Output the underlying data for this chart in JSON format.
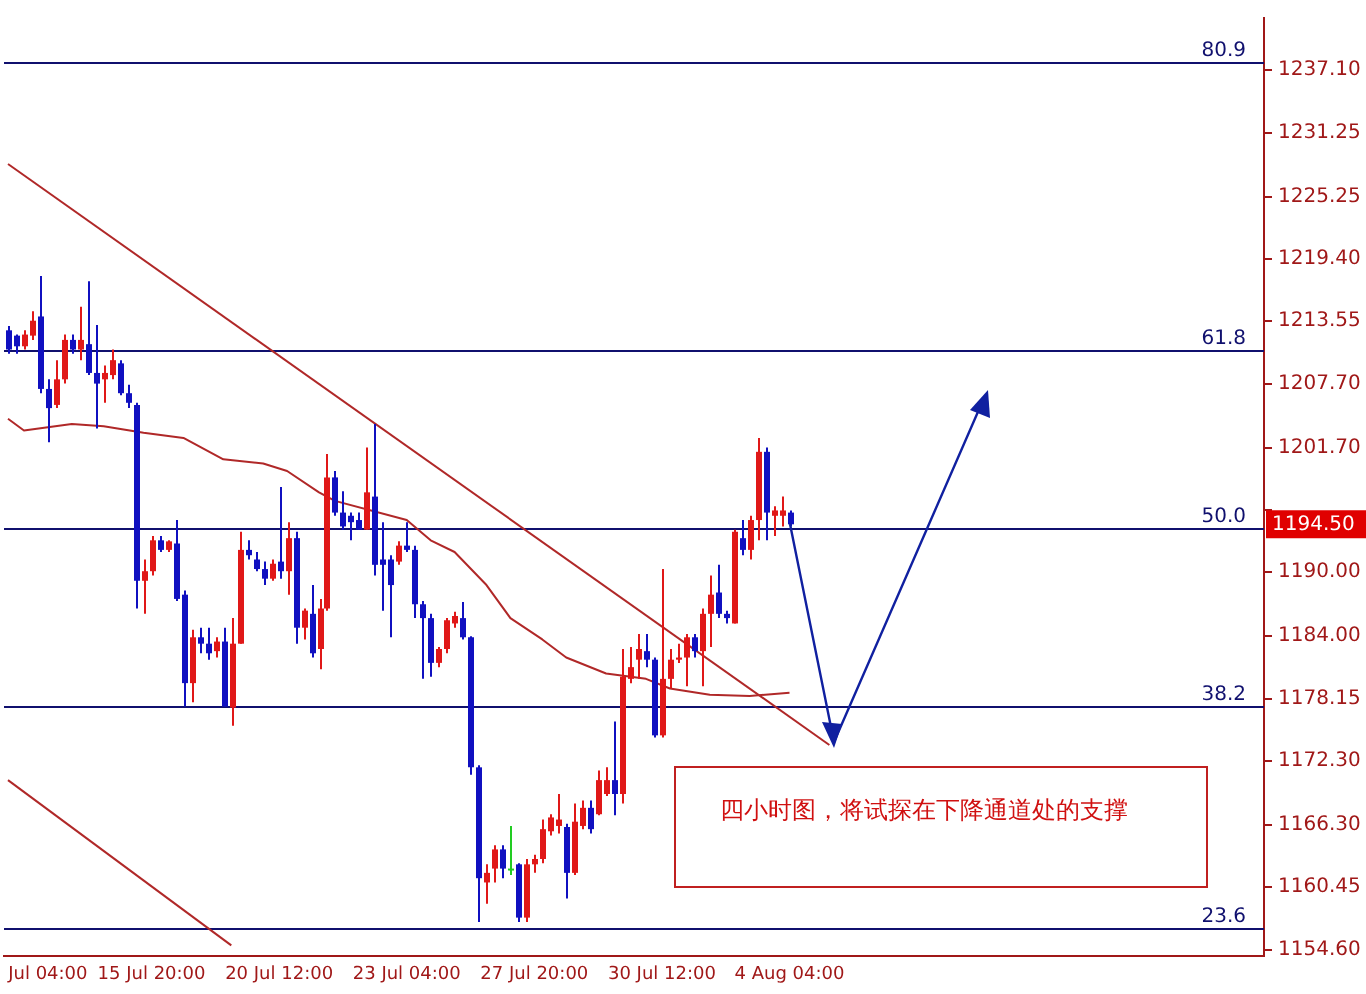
{
  "chart_data": {
    "type": "candlestick",
    "categories": [
      null,
      null,
      null,
      null,
      null,
      "Jul 04:00",
      null,
      null,
      null,
      null,
      null,
      null,
      null,
      null,
      null,
      null,
      null,
      null,
      "15 Jul 20:00",
      null,
      null,
      null,
      null,
      null,
      null,
      null,
      null,
      null,
      null,
      null,
      null,
      null,
      null,
      null,
      "20 Jul 12:00",
      null,
      null,
      null,
      null,
      null,
      null,
      null,
      null,
      null,
      null,
      null,
      null,
      null,
      null,
      null,
      "23 Jul 04:00",
      null,
      null,
      null,
      null,
      null,
      null,
      null,
      null,
      null,
      null,
      null,
      null,
      null,
      null,
      null,
      "27 Jul 20:00",
      null,
      null,
      null,
      null,
      null,
      null,
      null,
      null,
      null,
      null,
      null,
      null,
      null,
      null,
      null,
      "30 Jul 12:00",
      null,
      null,
      null,
      null,
      null,
      null,
      null,
      null,
      null,
      null,
      null,
      null,
      null,
      null,
      null,
      "4 Aug 04:00",
      null,
      null,
      null,
      null,
      null,
      null,
      null,
      null,
      null,
      null,
      null,
      null,
      null,
      null,
      null,
      null,
      null,
      null,
      null,
      null,
      null,
      null,
      null,
      null,
      null,
      null,
      null,
      null,
      null,
      null,
      null,
      null,
      null,
      null,
      null,
      null,
      null,
      null,
      null,
      null,
      null,
      null,
      null,
      null,
      null,
      null,
      null,
      null,
      null,
      null,
      null,
      null,
      null,
      null,
      null,
      null,
      null,
      null,
      null
    ],
    "ohlc": [
      [
        1212.7,
        1213.1,
        1210.5,
        1210.9
      ],
      [
        1212.2,
        1212.3,
        1210.5,
        1211.2
      ],
      [
        1211.2,
        1212.7,
        1210.9,
        1212.3
      ],
      [
        1212.2,
        1214.5,
        1211.8,
        1213.6
      ],
      [
        1214.0,
        1217.8,
        1206.8,
        1207.2
      ],
      [
        1207.2,
        1208.1,
        1202.2,
        1205.4
      ],
      [
        1205.7,
        1209.9,
        1205.4,
        1208.1
      ],
      [
        1208.1,
        1212.3,
        1207.7,
        1211.8
      ],
      [
        1211.8,
        1212.3,
        1210.5,
        1210.9
      ],
      [
        1210.9,
        1214.9,
        1209.9,
        1211.8
      ],
      [
        1211.4,
        1217.3,
        1208.5,
        1208.7
      ],
      [
        1208.7,
        1213.2,
        1203.5,
        1207.7
      ],
      [
        1208.1,
        1209.4,
        1205.9,
        1208.7
      ],
      [
        1208.5,
        1210.9,
        1208.1,
        1209.9
      ],
      [
        1209.6,
        1209.9,
        1206.6,
        1206.8
      ],
      [
        1206.8,
        1207.6,
        1205.4,
        1205.9
      ],
      [
        1205.7,
        1205.9,
        1186.6,
        1189.2
      ],
      [
        1189.2,
        1191.2,
        1186.1,
        1190.1
      ],
      [
        1190.1,
        1193.4,
        1189.7,
        1193.0
      ],
      [
        1193.0,
        1193.4,
        1191.9,
        1192.1
      ],
      [
        1192.1,
        1193.0,
        1191.9,
        1192.9
      ],
      [
        1192.7,
        1194.9,
        1187.3,
        1187.5
      ],
      [
        1187.9,
        1188.3,
        1177.4,
        1179.6
      ],
      [
        1179.6,
        1184.6,
        1177.8,
        1183.9
      ],
      [
        1183.9,
        1184.8,
        1182.4,
        1183.3
      ],
      [
        1183.3,
        1184.8,
        1181.8,
        1182.4
      ],
      [
        1182.6,
        1183.9,
        1182.0,
        1183.5
      ],
      [
        1183.5,
        1184.8,
        1177.4,
        1177.4
      ],
      [
        1177.3,
        1185.7,
        1175.6,
        1183.3
      ],
      [
        1183.3,
        1193.8,
        1183.3,
        1192.1
      ],
      [
        1192.1,
        1193.0,
        1191.2,
        1191.6
      ],
      [
        1191.2,
        1191.9,
        1190.1,
        1190.3
      ],
      [
        1190.3,
        1191.0,
        1188.8,
        1189.4
      ],
      [
        1189.4,
        1191.2,
        1189.2,
        1190.8
      ],
      [
        1191.0,
        1198.0,
        1189.4,
        1190.1
      ],
      [
        1190.1,
        1194.7,
        1187.9,
        1193.2
      ],
      [
        1193.2,
        1193.8,
        1183.3,
        1184.8
      ],
      [
        1184.8,
        1186.6,
        1183.7,
        1186.4
      ],
      [
        1186.1,
        1188.8,
        1182.0,
        1182.4
      ],
      [
        1182.8,
        1187.5,
        1180.9,
        1186.6
      ],
      [
        1186.6,
        1201.1,
        1186.4,
        1198.9
      ],
      [
        1198.9,
        1199.5,
        1195.3,
        1195.6
      ],
      [
        1195.6,
        1197.6,
        1194.0,
        1194.3
      ],
      [
        1195.3,
        1195.6,
        1193.0,
        1194.7
      ],
      [
        1194.9,
        1195.6,
        1194.0,
        1194.0
      ],
      [
        1194.0,
        1201.7,
        1194.0,
        1197.5
      ],
      [
        1197.1,
        1203.9,
        1189.7,
        1190.7
      ],
      [
        1191.2,
        1194.7,
        1186.4,
        1190.7
      ],
      [
        1191.2,
        1191.6,
        1183.9,
        1188.8
      ],
      [
        1191.0,
        1192.9,
        1190.7,
        1192.5
      ],
      [
        1192.5,
        1194.7,
        1191.9,
        1192.1
      ],
      [
        1192.1,
        1192.5,
        1185.7,
        1187.0
      ],
      [
        1187.0,
        1187.3,
        1180.0,
        1185.7
      ],
      [
        1185.7,
        1186.1,
        1180.2,
        1181.5
      ],
      [
        1181.5,
        1183.0,
        1181.1,
        1182.8
      ],
      [
        1182.8,
        1185.7,
        1182.4,
        1185.5
      ],
      [
        1185.2,
        1186.3,
        1184.8,
        1185.9
      ],
      [
        1185.7,
        1187.2,
        1183.7,
        1183.9
      ],
      [
        1183.9,
        1184.0,
        1171.0,
        1171.7
      ],
      [
        1171.7,
        1171.9,
        1157.2,
        1161.3
      ],
      [
        1160.9,
        1162.6,
        1158.9,
        1161.8
      ],
      [
        1162.2,
        1164.4,
        1160.9,
        1164.0
      ],
      [
        1164.0,
        1164.4,
        1161.3,
        1162.2
      ],
      [
        1162.2,
        1166.2,
        1161.6,
        1162.2
      ],
      [
        1162.6,
        1162.7,
        1157.2,
        1157.6
      ],
      [
        1157.6,
        1163.1,
        1157.2,
        1162.6
      ],
      [
        1162.6,
        1163.5,
        1161.8,
        1163.1
      ],
      [
        1163.1,
        1166.8,
        1162.7,
        1165.9
      ],
      [
        1165.7,
        1167.3,
        1165.3,
        1167.0
      ],
      [
        1166.2,
        1169.2,
        1165.5,
        1166.8
      ],
      [
        1166.1,
        1166.4,
        1159.4,
        1161.8
      ],
      [
        1161.8,
        1168.3,
        1161.6,
        1166.6
      ],
      [
        1166.2,
        1168.6,
        1165.9,
        1167.9
      ],
      [
        1167.9,
        1168.6,
        1165.5,
        1165.9
      ],
      [
        1167.3,
        1171.4,
        1167.2,
        1170.5
      ],
      [
        1169.2,
        1171.7,
        1169.0,
        1170.5
      ],
      [
        1170.5,
        1176.0,
        1167.2,
        1169.2
      ],
      [
        1169.2,
        1182.8,
        1168.3,
        1180.2
      ],
      [
        1180.0,
        1183.0,
        1179.6,
        1181.1
      ],
      [
        1181.8,
        1184.2,
        1180.0,
        1182.8
      ],
      [
        1182.6,
        1184.2,
        1181.1,
        1181.8
      ],
      [
        1181.8,
        1182.0,
        1174.5,
        1174.7
      ],
      [
        1174.7,
        1190.3,
        1174.5,
        1180.0
      ],
      [
        1180.0,
        1182.8,
        1179.1,
        1181.8
      ],
      [
        1181.8,
        1183.3,
        1181.5,
        1182.0
      ],
      [
        1182.0,
        1184.2,
        1179.3,
        1183.9
      ],
      [
        1183.9,
        1184.2,
        1182.0,
        1182.6
      ],
      [
        1182.6,
        1186.6,
        1179.3,
        1186.1
      ],
      [
        1186.1,
        1189.7,
        1183.0,
        1187.9
      ],
      [
        1188.1,
        1190.7,
        1185.7,
        1186.1
      ],
      [
        1186.1,
        1186.4,
        1185.2,
        1185.7
      ],
      [
        1185.2,
        1194.0,
        1185.2,
        1193.8
      ],
      [
        1193.2,
        1194.9,
        1191.6,
        1192.1
      ],
      [
        1192.1,
        1195.3,
        1191.2,
        1194.9
      ],
      [
        1194.9,
        1202.6,
        1193.0,
        1201.3
      ],
      [
        1201.3,
        1201.7,
        1193.0,
        1195.6
      ],
      [
        1195.3,
        1196.2,
        1193.4,
        1195.8
      ],
      [
        1195.3,
        1197.1,
        1194.3,
        1195.8
      ],
      [
        1195.6,
        1195.8,
        1194.3,
        1194.5
      ],
      null,
      null,
      null,
      null,
      null,
      null,
      null,
      null,
      null,
      null,
      null,
      null,
      null,
      null,
      null,
      null,
      null,
      null,
      null,
      null,
      null,
      null,
      null,
      null,
      null,
      null,
      null,
      null,
      null,
      null,
      null,
      null,
      null,
      null,
      null,
      null,
      null,
      null,
      null,
      null,
      null,
      null,
      null,
      null,
      null,
      null,
      null,
      null,
      null,
      null,
      null,
      null,
      null,
      null,
      null,
      null,
      null,
      null,
      null
    ],
    "colors": [
      "#1010c0",
      "#1010c0",
      "#e01818",
      "#e01818",
      "#1010c0",
      "#1010c0",
      "#e01818",
      "#e01818",
      "#1010c0",
      "#e01818",
      "#1010c0",
      "#1010c0",
      "#e01818",
      "#e01818",
      "#1010c0",
      "#1010c0",
      "#1010c0",
      "#e01818",
      "#e01818",
      "#1010c0",
      "#e01818",
      "#1010c0",
      "#1010c0",
      "#e01818",
      "#1010c0",
      "#1010c0",
      "#e01818",
      "#1010c0",
      "#e01818",
      "#e01818",
      "#1010c0",
      "#1010c0",
      "#1010c0",
      "#e01818",
      "#1010c0",
      "#e01818",
      "#1010c0",
      "#e01818",
      "#1010c0",
      "#e01818",
      "#e01818",
      "#1010c0",
      "#1010c0",
      "#1010c0",
      "#1010c0",
      "#e01818",
      "#1010c0",
      "#1010c0",
      "#1010c0",
      "#e01818",
      "#1010c0",
      "#1010c0",
      "#1010c0",
      "#1010c0",
      "#e01818",
      "#e01818",
      "#e01818",
      "#1010c0",
      "#1010c0",
      "#1010c0",
      "#e01818",
      "#e01818",
      "#1010c0",
      "#22cc22",
      "#1010c0",
      "#e01818",
      "#e01818",
      "#e01818",
      "#e01818",
      "#e01818",
      "#1010c0",
      "#e01818",
      "#e01818",
      "#1010c0",
      "#e01818",
      "#e01818",
      "#1010c0",
      "#e01818",
      "#e01818",
      "#e01818",
      "#1010c0",
      "#1010c0",
      "#e01818",
      "#e01818",
      "#e01818",
      "#e01818",
      "#1010c0",
      "#e01818",
      "#e01818",
      "#1010c0",
      "#1010c0",
      "#e01818",
      "#1010c0",
      "#e01818",
      "#e01818",
      "#1010c0",
      "#e01818",
      "#e01818",
      "#1010c0",
      null,
      null,
      null,
      null,
      null,
      null,
      null,
      null,
      null,
      null,
      null,
      null,
      null,
      null,
      null,
      null,
      null,
      null,
      null,
      null,
      null,
      null,
      null,
      null,
      null,
      null,
      null,
      null,
      null,
      null,
      null,
      null,
      null,
      null,
      null,
      null,
      null,
      null,
      null,
      null,
      null,
      null,
      null,
      null,
      null,
      null,
      null,
      null,
      null,
      null,
      null,
      null,
      null,
      null,
      null,
      null,
      null,
      null,
      null
    ],
    "series": [
      {
        "type": "line",
        "color": "#b02828",
        "values": [
          1204.4,
          null,
          1203.3,
          null,
          null,
          null,
          null,
          null,
          1203.9,
          null,
          null,
          null,
          1203.7,
          null,
          null,
          null,
          null,
          1203.1,
          null,
          null,
          null,
          null,
          1202.6,
          null,
          null,
          null,
          null,
          1200.6,
          null,
          null,
          null,
          null,
          1200.2,
          null,
          null,
          1199.5,
          null,
          null,
          null,
          1197.5,
          null,
          1196.7,
          null,
          null,
          null,
          null,
          null,
          null,
          null,
          null,
          1194.9,
          null,
          null,
          1193.0,
          null,
          null,
          1191.9,
          null,
          null,
          null,
          1188.8,
          null,
          null,
          1185.7,
          null,
          null,
          null,
          1183.7,
          null,
          null,
          1182.0,
          null,
          null,
          null,
          null,
          1180.5,
          null,
          null,
          null,
          null,
          1180.0,
          null,
          null,
          1179.1,
          null,
          null,
          null,
          null,
          1178.5,
          null,
          null,
          null,
          null,
          1178.4,
          null,
          null,
          null,
          null,
          1178.7,
          null,
          null,
          null,
          null,
          null,
          null,
          null,
          null,
          null,
          null,
          null,
          null,
          null,
          null,
          null,
          null,
          null,
          null,
          null,
          null,
          null,
          null,
          null,
          null,
          null,
          null,
          null,
          null,
          null,
          null,
          null,
          null,
          null,
          null,
          null,
          null,
          null,
          null,
          null,
          null,
          null,
          null,
          null,
          null,
          null,
          null,
          null,
          null,
          null,
          null,
          null,
          null,
          null,
          null,
          null,
          null,
          null,
          null,
          null
        ]
      },
      {
        "type": "line",
        "color": "#b02828",
        "values": [
          1228.3,
          null,
          null,
          null,
          null,
          null,
          null,
          null,
          null,
          null,
          null,
          null,
          null,
          null,
          null,
          null,
          null,
          null,
          null,
          null,
          null,
          null,
          null,
          null,
          null,
          null,
          null,
          null,
          null,
          null,
          null,
          null,
          null,
          null,
          null,
          null,
          null,
          null,
          null,
          null,
          null,
          null,
          null,
          null,
          null,
          null,
          null,
          null,
          null,
          null,
          null,
          null,
          null,
          null,
          null,
          null,
          null,
          null,
          null,
          null,
          null,
          null,
          null,
          null,
          null,
          null,
          null,
          null,
          null,
          null,
          null,
          null,
          null,
          null,
          null,
          null,
          null,
          null,
          null,
          null,
          null,
          null,
          null,
          null,
          null,
          null,
          null,
          null,
          null,
          null,
          null,
          null,
          null,
          null,
          null,
          null,
          null,
          null,
          null,
          null,
          null,
          null,
          null,
          1173.8,
          null,
          null,
          null,
          null,
          null,
          null,
          null,
          null,
          null,
          null,
          null,
          null,
          null,
          null,
          null,
          null,
          null,
          null,
          null,
          null,
          null,
          null,
          null,
          null,
          null,
          null,
          null,
          null,
          null,
          null,
          null,
          null,
          null,
          null,
          null,
          null,
          null,
          null,
          null,
          null,
          null,
          null,
          null,
          null,
          null,
          null,
          null,
          null,
          null,
          null,
          null,
          null,
          null,
          null
        ]
      },
      {
        "type": "line",
        "color": "#b02828",
        "values": [
          1170.5,
          null,
          null,
          null,
          null,
          null,
          null,
          null,
          null,
          null,
          null,
          null,
          null,
          null,
          null,
          null,
          null,
          null,
          null,
          null,
          null,
          null,
          null,
          null,
          null,
          null,
          null,
          null,
          1155.0,
          null,
          null,
          null,
          null,
          null,
          null,
          null,
          null,
          null,
          null,
          null,
          null,
          null,
          null,
          null,
          null,
          null,
          null,
          null,
          null,
          null,
          null,
          null,
          null,
          null,
          null,
          null,
          null,
          null,
          null,
          null,
          null,
          null,
          null,
          null,
          null,
          null,
          null,
          null,
          null,
          null,
          null,
          null,
          null,
          null,
          null,
          null,
          null,
          null,
          null,
          null,
          null,
          null,
          null,
          null,
          null,
          null,
          null,
          null,
          null,
          null,
          null,
          null,
          null,
          null,
          null,
          null,
          null,
          null,
          null,
          null,
          null,
          null,
          null,
          null,
          null,
          null,
          null,
          null,
          null,
          null,
          null,
          null,
          null,
          null,
          null,
          null,
          null,
          null,
          null,
          null,
          null,
          null,
          null,
          null,
          null,
          null,
          null,
          null,
          null,
          null,
          null,
          null,
          null,
          null,
          null,
          null,
          null,
          null,
          null,
          null,
          null,
          null,
          null,
          null,
          null,
          null,
          null,
          null,
          null,
          null,
          null,
          null,
          null,
          null,
          null,
          null,
          null,
          null
        ]
      }
    ],
    "ylim": [
      1154,
      1242
    ],
    "yticks": [
      {
        "value": 1154.6,
        "label": "1154.60"
      },
      1160.45,
      {
        "value": 1166.3,
        "label": "1166.30"
      },
      {
        "value": 1172.3,
        "label": "1172.30"
      },
      1178.15,
      {
        "value": 1184.0,
        "label": "1184.00"
      },
      {
        "value": 1190.0,
        "label": "1190.00"
      },
      {
        "value": 1195.85,
        "label": null
      },
      {
        "value": 1201.7,
        "label": "1201.70"
      },
      {
        "value": 1207.7,
        "label": "1207.70"
      },
      1213.55,
      {
        "value": 1219.4,
        "label": "1219.40"
      },
      1225.25,
      1231.25,
      {
        "value": 1237.1,
        "label": "1237.10"
      }
    ],
    "ref_lines": [
      {
        "axis": "y",
        "value": 1237.8,
        "color": "#10106e"
      },
      {
        "axis": "y",
        "value": 1210.8,
        "color": "#10106e"
      },
      {
        "axis": "y",
        "value": 1194.1,
        "color": "#10106e"
      },
      {
        "axis": "y",
        "value": 1177.4,
        "color": "#10106e"
      },
      {
        "axis": "y",
        "value": 1156.6,
        "color": "#10106e"
      }
    ],
    "annotations": [
      "四小时图，将试探在下降通道处的支撑",
      "1194.50",
      {
        "text": "80.9",
        "y": 1237.8
      },
      {
        "text": "61.8",
        "y": 1210.8
      },
      {
        "text": "50.0",
        "y": 1194.1
      },
      {
        "text": "38.2",
        "y": 1177.4
      },
      {
        "text": "23.6",
        "y": 1156.6
      }
    ],
    "grid": false,
    "legend": false
  }
}
